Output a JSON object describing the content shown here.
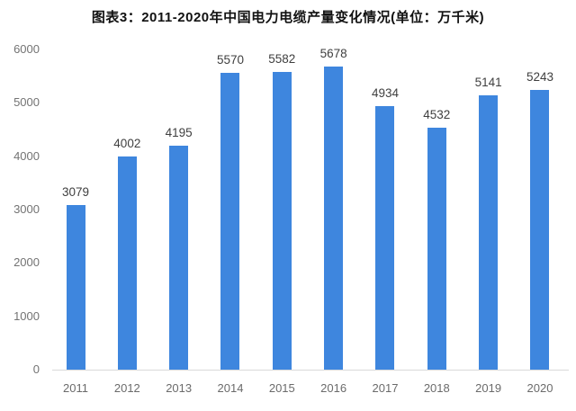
{
  "title": "图表3：2011-2020年中国电力电缆产量变化情况(单位：万千米)",
  "chart_data": {
    "type": "bar",
    "title": "图表3：2011-2020年中国电力电缆产量变化情况(单位：万千米)",
    "categories": [
      "2011",
      "2012",
      "2013",
      "2014",
      "2015",
      "2016",
      "2017",
      "2018",
      "2019",
      "2020"
    ],
    "values": [
      3079,
      4002,
      4195,
      5570,
      5582,
      5678,
      4934,
      4532,
      5141,
      5243
    ],
    "series_unit": "万千米",
    "xlabel": "",
    "ylabel": "",
    "ylim": [
      0,
      6000
    ],
    "yticks": [
      0,
      1000,
      2000,
      3000,
      4000,
      5000,
      6000
    ],
    "grid": false,
    "legend": "none",
    "data_labels": true,
    "bar_color": "#3e86de",
    "axis_line_color": "#d9d9d9",
    "tick_label_color": "#737373",
    "data_label_color": "#3f3f3f",
    "title_color": "#111111",
    "background_color": "#ffffff"
  }
}
